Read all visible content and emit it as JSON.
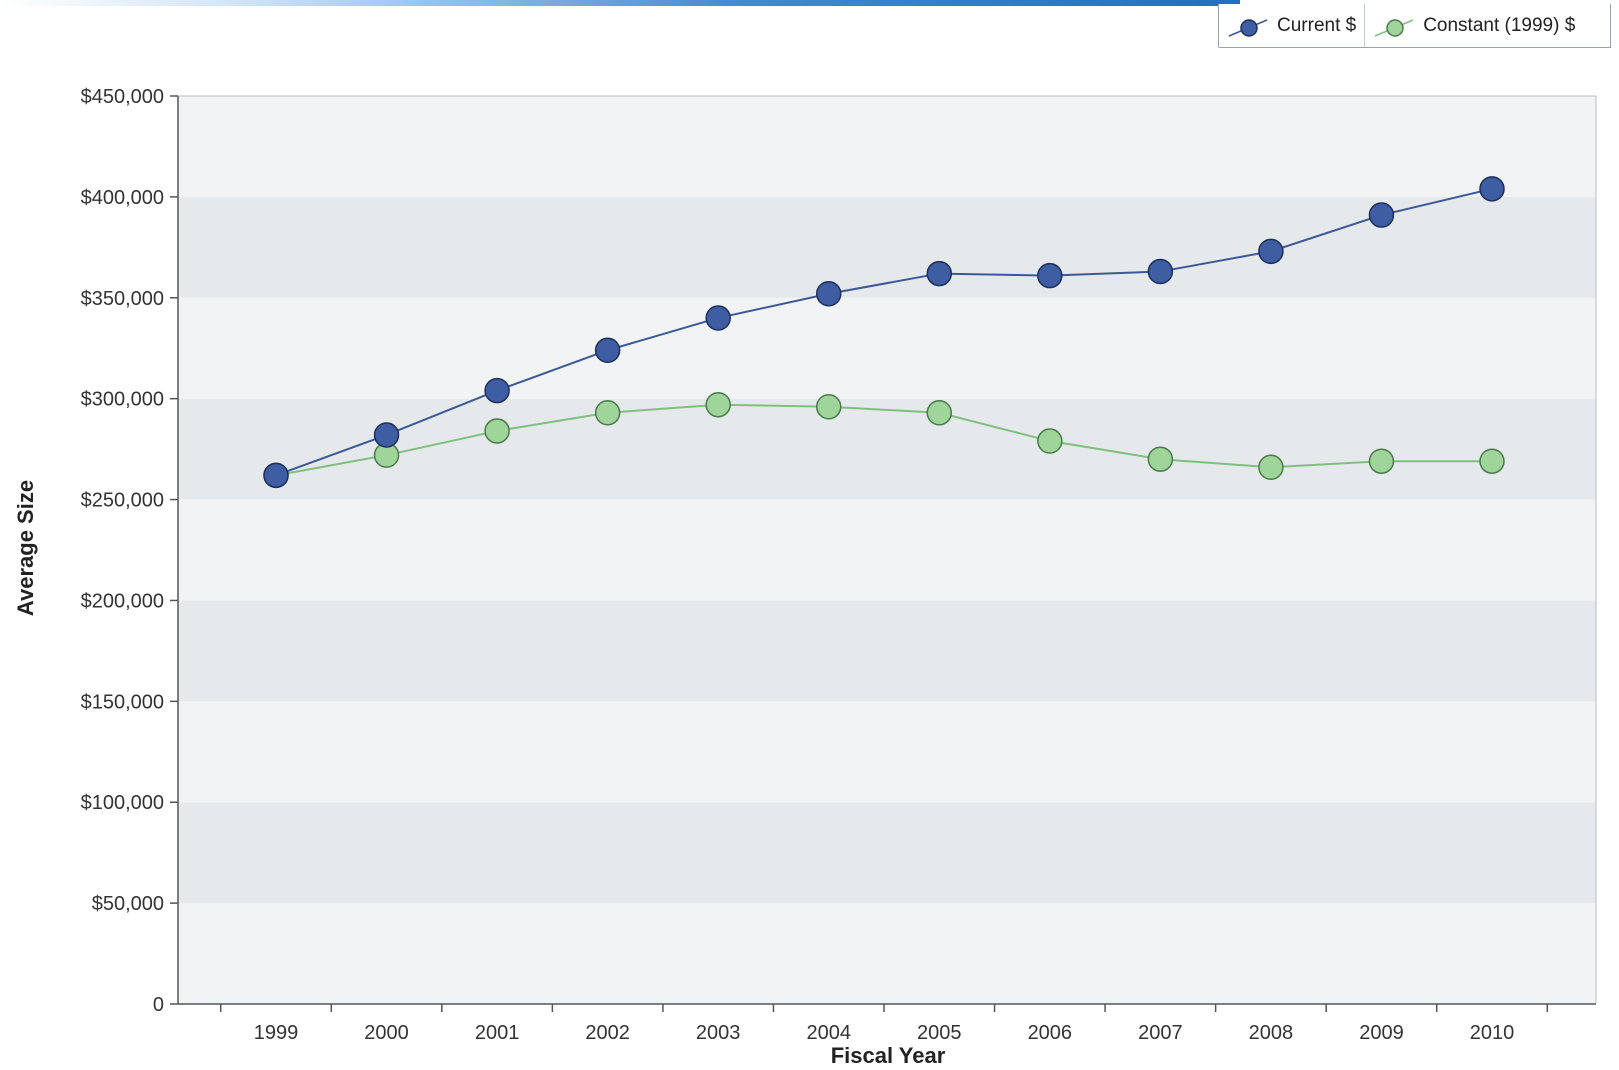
{
  "colors": {
    "current": "#3b5998",
    "current_fill": "#3f5da3",
    "constant": "#7fbf7f",
    "constant_fill": "#9fd49a",
    "band_dark": "#e6e9ec",
    "band_light": "#f2f3f5"
  },
  "legend": {
    "current_label": "Current $",
    "constant_label": "Constant (1999) $"
  },
  "chart_data": {
    "type": "line",
    "title": "",
    "xlabel": "Fiscal Year",
    "ylabel": "Average Size",
    "categories": [
      "1999",
      "2000",
      "2001",
      "2002",
      "2003",
      "2004",
      "2005",
      "2006",
      "2007",
      "2008",
      "2009",
      "2010"
    ],
    "ylim": [
      0,
      450000
    ],
    "yticks": [
      0,
      50000,
      100000,
      150000,
      200000,
      250000,
      300000,
      350000,
      400000,
      450000
    ],
    "ytick_labels": [
      "0",
      "$50,000",
      "$100,000",
      "$150,000",
      "$200,000",
      "$250,000",
      "$300,000",
      "$350,000",
      "$400,000",
      "$450,000"
    ],
    "grid": "alternating horizontal bands",
    "legend_position": "top-right",
    "series": [
      {
        "name": "Current $",
        "values": [
          262000,
          282000,
          304000,
          324000,
          340000,
          352000,
          362000,
          361000,
          363000,
          373000,
          391000,
          404000
        ]
      },
      {
        "name": "Constant (1999) $",
        "values": [
          262000,
          272000,
          284000,
          293000,
          297000,
          296000,
          293000,
          279000,
          270000,
          266000,
          269000,
          269000
        ]
      }
    ]
  }
}
